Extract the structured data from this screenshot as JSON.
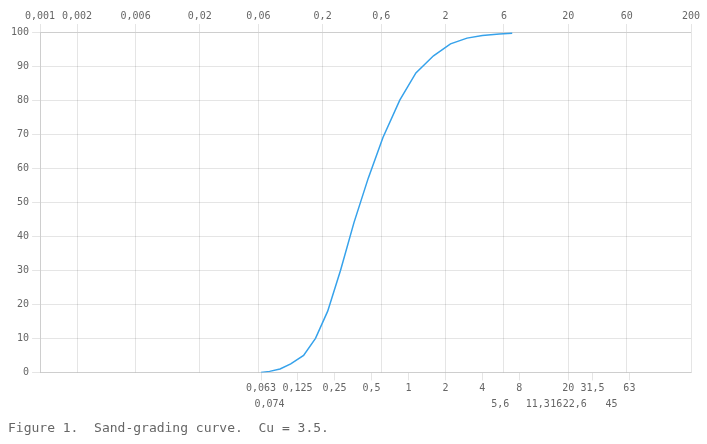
{
  "chart_data": {
    "type": "line",
    "title": "Figure 1.  Sand-grading curve.  Cu = 3.5.",
    "x": [
      0.063,
      0.074,
      0.09,
      0.11,
      0.14,
      0.175,
      0.22,
      0.28,
      0.36,
      0.47,
      0.62,
      0.85,
      1.15,
      1.6,
      2.2,
      3.0,
      4.0,
      5.5,
      7.0
    ],
    "values": [
      0,
      0.3,
      1.0,
      2.5,
      5,
      10,
      18,
      30,
      44,
      57,
      69,
      80,
      88,
      93,
      96.5,
      98.2,
      99.0,
      99.4,
      99.6
    ],
    "log": "x",
    "grid": true,
    "xlim": [
      0.001,
      200
    ],
    "xticks": [
      {
        "value": 0.001,
        "label": "0,001"
      },
      {
        "value": 0.002,
        "label": "0,002"
      },
      {
        "value": 0.006,
        "label": "0,006"
      },
      {
        "value": 0.02,
        "label": "0,02"
      },
      {
        "value": 0.06,
        "label": "0,06"
      },
      {
        "value": 0.2,
        "label": "0,2"
      },
      {
        "value": 0.6,
        "label": "0,6"
      },
      2,
      6,
      20,
      60,
      200
    ],
    "x2ticks": [
      {
        "value": 0.063,
        "label": "0,063"
      },
      {
        "value": 0.125,
        "label": "0,125"
      },
      {
        "value": 0.25,
        "label": "0,25"
      },
      {
        "value": 0.5,
        "label": "0,5"
      },
      1,
      2,
      4,
      8,
      20,
      {
        "value": 31.5,
        "label": "31,5"
      },
      63
    ],
    "x3ticks": [
      {
        "value": 0.074,
        "label": "0,074"
      },
      {
        "value": 5.6,
        "label": "5,6"
      },
      {
        "value": 11.3,
        "label": "11,3"
      },
      16,
      {
        "value": 22.6,
        "label": "22,6"
      },
      45
    ],
    "ylim": [
      0,
      100
    ],
    "yticks": [
      0,
      10,
      20,
      30,
      40,
      50,
      60,
      70,
      80,
      90,
      100
    ]
  }
}
